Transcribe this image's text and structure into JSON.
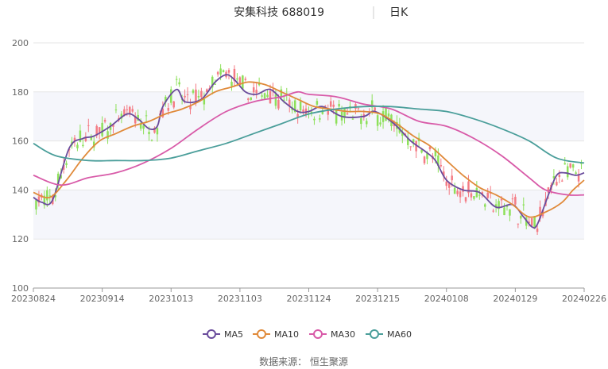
{
  "chart_data": {
    "type": "candlestick",
    "title": "安集科技 688019",
    "period": "日K",
    "source": "数据来源： 恒生聚源",
    "ylim": [
      100,
      200
    ],
    "yticks": [
      100,
      120,
      140,
      160,
      180,
      200
    ],
    "x_ticks": [
      "20230824",
      "20230914",
      "20231013",
      "20231103",
      "20231124",
      "20231215",
      "20240108",
      "20240129",
      "20240226"
    ],
    "up_color": "#f47b84",
    "down_color": "#8de05a",
    "grid": "horizontal",
    "legend_position": "bottom",
    "ma_series": [
      {
        "name": "MA5",
        "color": "#6a4c9c",
        "points": [
          [
            0,
            137
          ],
          [
            3,
            135
          ],
          [
            7,
            136
          ],
          [
            13,
            157
          ],
          [
            18,
            161
          ],
          [
            22,
            162
          ],
          [
            28,
            166
          ],
          [
            34,
            171
          ],
          [
            38,
            169
          ],
          [
            42,
            165
          ],
          [
            45,
            166
          ],
          [
            47,
            174
          ],
          [
            52,
            181
          ],
          [
            55,
            176
          ],
          [
            61,
            177
          ],
          [
            66,
            184
          ],
          [
            70,
            187
          ],
          [
            73,
            185
          ],
          [
            77,
            180
          ],
          [
            81,
            179
          ],
          [
            86,
            181
          ],
          [
            91,
            176
          ],
          [
            96,
            172
          ],
          [
            100,
            172
          ],
          [
            105,
            174
          ],
          [
            112,
            170
          ],
          [
            120,
            170
          ],
          [
            124,
            172
          ],
          [
            131,
            167
          ],
          [
            137,
            160
          ],
          [
            142,
            156
          ],
          [
            146,
            152
          ],
          [
            150,
            144
          ],
          [
            156,
            140
          ],
          [
            162,
            139
          ],
          [
            168,
            133
          ],
          [
            174,
            134
          ],
          [
            178,
            129
          ],
          [
            181,
            125
          ],
          [
            183,
            126
          ],
          [
            187,
            138
          ],
          [
            190,
            146
          ],
          [
            193,
            147
          ],
          [
            197,
            146
          ],
          [
            200,
            147
          ]
        ]
      },
      {
        "name": "MA10",
        "color": "#e08a3a",
        "points": [
          [
            0,
            139
          ],
          [
            6,
            137
          ],
          [
            12,
            144
          ],
          [
            18,
            153
          ],
          [
            24,
            160
          ],
          [
            30,
            163
          ],
          [
            36,
            166
          ],
          [
            42,
            168
          ],
          [
            48,
            171
          ],
          [
            54,
            173
          ],
          [
            60,
            176
          ],
          [
            66,
            180
          ],
          [
            72,
            182
          ],
          [
            78,
            184
          ],
          [
            84,
            183
          ],
          [
            90,
            180
          ],
          [
            96,
            177
          ],
          [
            102,
            174
          ],
          [
            108,
            173
          ],
          [
            114,
            172
          ],
          [
            120,
            172
          ],
          [
            126,
            171
          ],
          [
            132,
            167
          ],
          [
            138,
            162
          ],
          [
            144,
            158
          ],
          [
            150,
            152
          ],
          [
            156,
            146
          ],
          [
            162,
            141
          ],
          [
            168,
            138
          ],
          [
            174,
            134
          ],
          [
            180,
            129
          ],
          [
            186,
            131
          ],
          [
            192,
            135
          ],
          [
            196,
            140
          ],
          [
            200,
            144
          ]
        ]
      },
      {
        "name": "MA30",
        "color": "#d85aa8",
        "points": [
          [
            0,
            146
          ],
          [
            10,
            142
          ],
          [
            20,
            145
          ],
          [
            30,
            147
          ],
          [
            40,
            151
          ],
          [
            50,
            157
          ],
          [
            60,
            165
          ],
          [
            70,
            172
          ],
          [
            80,
            176
          ],
          [
            90,
            178
          ],
          [
            96,
            180
          ],
          [
            100,
            179
          ],
          [
            110,
            178
          ],
          [
            120,
            175
          ],
          [
            130,
            173
          ],
          [
            140,
            168
          ],
          [
            150,
            166
          ],
          [
            160,
            161
          ],
          [
            170,
            154
          ],
          [
            180,
            145
          ],
          [
            186,
            140
          ],
          [
            194,
            138
          ],
          [
            200,
            138
          ]
        ]
      },
      {
        "name": "MA60",
        "color": "#4a9e9a",
        "points": [
          [
            0,
            159
          ],
          [
            8,
            154
          ],
          [
            20,
            152
          ],
          [
            30,
            152
          ],
          [
            40,
            152
          ],
          [
            50,
            153
          ],
          [
            60,
            156
          ],
          [
            70,
            159
          ],
          [
            80,
            163
          ],
          [
            90,
            167
          ],
          [
            100,
            171
          ],
          [
            110,
            173
          ],
          [
            120,
            174
          ],
          [
            130,
            174
          ],
          [
            140,
            173
          ],
          [
            150,
            172
          ],
          [
            160,
            169
          ],
          [
            170,
            165
          ],
          [
            180,
            160
          ],
          [
            190,
            153
          ],
          [
            200,
            151
          ]
        ]
      }
    ]
  }
}
